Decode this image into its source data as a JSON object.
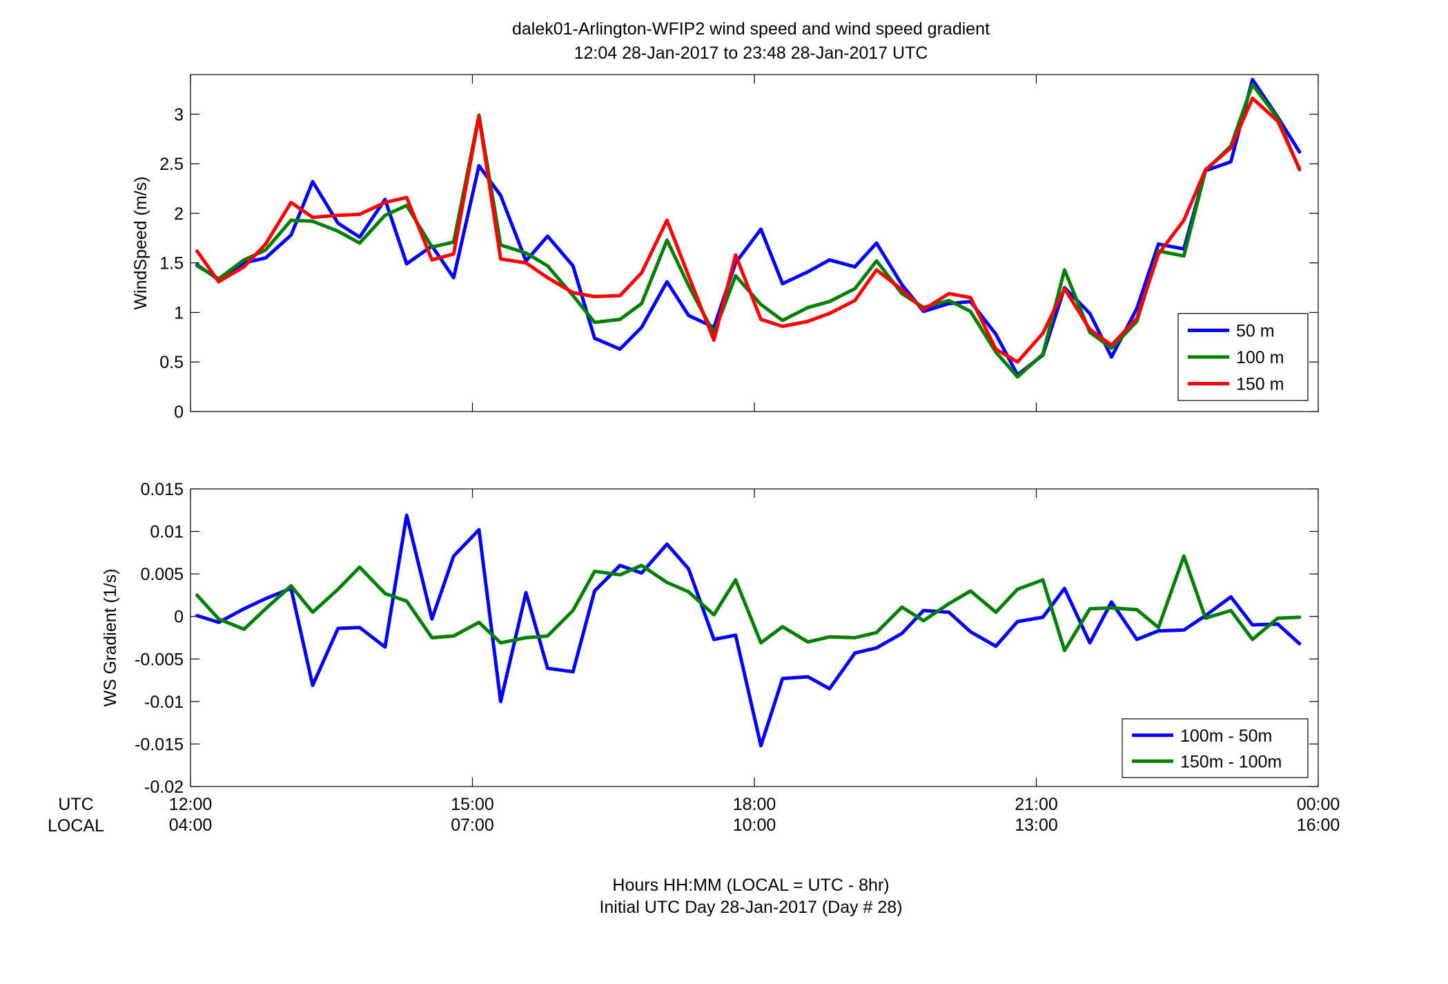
{
  "figure": {
    "title_line1": "dalek01-Arlington-WFIP2  wind speed and wind speed gradient",
    "title_line2": "12:04 28-Jan-2017 to 23:48 28-Jan-2017  UTC",
    "x_row_label_utc": "UTC",
    "x_row_label_local": "LOCAL",
    "footer_line1": "Hours HH:MM  (LOCAL = UTC - 8hr)",
    "footer_line2": "Initial UTC Day 28-Jan-2017 (Day # 28)"
  },
  "chart_data": [
    {
      "type": "line",
      "title": "dalek01-Arlington-WFIP2  wind speed and wind speed gradient",
      "xlabel": "Hours HH:MM  (LOCAL = UTC - 8hr)",
      "ylabel": "WindSpeed (m/s)",
      "xlim": [
        12,
        24
      ],
      "ylim": [
        0,
        3.4
      ],
      "x_ticks": [
        12,
        15,
        18,
        21,
        24
      ],
      "x_ticklabels_utc": [
        "12:00",
        "15:00",
        "18:00",
        "21:00",
        "00:00"
      ],
      "x_ticklabels_local": [
        "04:00",
        "07:00",
        "10:00",
        "13:00",
        "16:00"
      ],
      "y_ticks": [
        0,
        0.5,
        1,
        1.5,
        2,
        2.5,
        3
      ],
      "y_ticklabels": [
        "0",
        "0.5",
        "1",
        "1.5",
        "2",
        "2.5",
        "3"
      ],
      "grid": false,
      "legend_position": "bottom-right",
      "x": [
        12.07,
        12.3,
        12.57,
        12.8,
        13.07,
        13.3,
        13.57,
        13.8,
        14.07,
        14.3,
        14.57,
        14.8,
        15.07,
        15.3,
        15.57,
        15.8,
        16.07,
        16.3,
        16.57,
        16.8,
        17.07,
        17.3,
        17.57,
        17.8,
        18.07,
        18.3,
        18.57,
        18.8,
        19.07,
        19.3,
        19.57,
        19.8,
        20.07,
        20.3,
        20.57,
        20.8,
        21.07,
        21.3,
        21.57,
        21.8,
        22.07,
        22.3,
        22.57,
        22.8,
        23.07,
        23.3,
        23.57,
        23.8
      ],
      "series": [
        {
          "name": "50 m",
          "color": "#0000ff",
          "values": [
            1.48,
            1.33,
            1.5,
            1.55,
            1.78,
            2.32,
            1.9,
            1.76,
            2.14,
            1.49,
            1.67,
            1.35,
            2.48,
            2.18,
            1.52,
            1.77,
            1.47,
            0.74,
            0.63,
            0.85,
            1.31,
            0.97,
            0.85,
            1.5,
            1.84,
            1.29,
            1.41,
            1.53,
            1.46,
            1.7,
            1.28,
            1.01,
            1.09,
            1.11,
            0.78,
            0.37,
            0.57,
            1.25,
            0.99,
            0.55,
            1.04,
            1.69,
            1.64,
            2.43,
            2.52,
            3.35,
            2.97,
            2.62
          ]
        },
        {
          "name": "100 m",
          "color": "#008000",
          "values": [
            1.47,
            1.34,
            1.53,
            1.63,
            1.93,
            1.92,
            1.82,
            1.7,
            1.98,
            2.08,
            1.66,
            1.71,
            2.99,
            1.68,
            1.6,
            1.47,
            1.17,
            0.9,
            0.93,
            1.09,
            1.73,
            1.27,
            0.79,
            1.37,
            1.08,
            0.92,
            1.05,
            1.11,
            1.24,
            1.52,
            1.19,
            1.05,
            1.12,
            1.01,
            0.6,
            0.35,
            0.58,
            1.43,
            0.8,
            0.64,
            0.91,
            1.62,
            1.57,
            2.43,
            2.68,
            3.3,
            2.96,
            2.44
          ]
        },
        {
          "name": "150 m",
          "color": "#ff0000",
          "values": [
            1.62,
            1.31,
            1.46,
            1.69,
            2.11,
            1.96,
            1.98,
            1.99,
            2.11,
            2.16,
            1.53,
            1.59,
            2.98,
            1.54,
            1.5,
            1.35,
            1.2,
            1.16,
            1.17,
            1.4,
            1.93,
            1.37,
            0.72,
            1.58,
            0.93,
            0.86,
            0.91,
            0.99,
            1.12,
            1.43,
            1.23,
            1.03,
            1.19,
            1.15,
            0.63,
            0.5,
            0.79,
            1.24,
            0.83,
            0.67,
            0.94,
            1.59,
            1.93,
            2.44,
            2.66,
            3.16,
            2.93,
            2.45
          ]
        }
      ]
    },
    {
      "type": "line",
      "xlabel": "Hours HH:MM  (LOCAL = UTC - 8hr)",
      "ylabel": "WS Gradient (1/s)",
      "xlim": [
        12,
        24
      ],
      "ylim": [
        -0.02,
        0.015
      ],
      "x_ticks": [
        12,
        15,
        18,
        21,
        24
      ],
      "x_ticklabels_utc": [
        "12:00",
        "15:00",
        "18:00",
        "21:00",
        "00:00"
      ],
      "x_ticklabels_local": [
        "04:00",
        "07:00",
        "10:00",
        "13:00",
        "16:00"
      ],
      "y_ticks": [
        -0.02,
        -0.015,
        -0.01,
        -0.005,
        0,
        0.005,
        0.01,
        0.015
      ],
      "y_ticklabels": [
        "-0.02",
        "-0.015",
        "-0.01",
        "-0.005",
        "0",
        "0.005",
        "0.01",
        "0.015"
      ],
      "grid": false,
      "legend_position": "bottom-right",
      "x": [
        12.07,
        12.3,
        12.57,
        12.8,
        13.07,
        13.3,
        13.57,
        13.8,
        14.07,
        14.3,
        14.57,
        14.8,
        15.07,
        15.3,
        15.57,
        15.8,
        16.07,
        16.3,
        16.57,
        16.8,
        17.07,
        17.3,
        17.57,
        17.8,
        18.07,
        18.3,
        18.57,
        18.8,
        19.07,
        19.3,
        19.57,
        19.8,
        20.07,
        20.3,
        20.57,
        20.8,
        21.07,
        21.3,
        21.57,
        21.8,
        22.07,
        22.3,
        22.57,
        22.8,
        23.07,
        23.3,
        23.57,
        23.8
      ],
      "series": [
        {
          "name": "100m - 50m",
          "color": "#0000ff",
          "values": [
            0.0001,
            -0.0007,
            0.0009,
            0.0021,
            0.0033,
            -0.0081,
            -0.0014,
            -0.0013,
            -0.0036,
            0.0119,
            -0.0003,
            0.0071,
            0.0102,
            -0.01,
            0.0028,
            -0.0061,
            -0.0065,
            0.003,
            0.006,
            0.0051,
            0.0085,
            0.0056,
            -0.0027,
            -0.0022,
            -0.0152,
            -0.0073,
            -0.0071,
            -0.0085,
            -0.0043,
            -0.0037,
            -0.002,
            0.0007,
            0.0005,
            -0.0018,
            -0.0035,
            -0.0006,
            -0.0001,
            0.0033,
            -0.0031,
            0.0017,
            -0.0027,
            -0.0017,
            -0.0016,
            0.0001,
            0.0023,
            -0.001,
            -0.0009,
            -0.0032
          ]
        },
        {
          "name": "150m - 100m",
          "color": "#008000",
          "values": [
            0.0025,
            -0.0003,
            -0.0015,
            0.0009,
            0.0036,
            0.0005,
            0.0032,
            0.0058,
            0.0027,
            0.0018,
            -0.0025,
            -0.0023,
            -0.0007,
            -0.0031,
            -0.0025,
            -0.0023,
            0.0007,
            0.0053,
            0.0049,
            0.006,
            0.004,
            0.0029,
            0.0002,
            0.0043,
            -0.0031,
            -0.0012,
            -0.003,
            -0.0024,
            -0.0025,
            -0.0019,
            0.0011,
            -0.0005,
            0.0015,
            0.003,
            0.0005,
            0.0032,
            0.0043,
            -0.004,
            0.0009,
            0.001,
            0.0008,
            -0.0013,
            0.0071,
            -0.0002,
            0.0007,
            -0.0027,
            -0.0002,
            -0.0001
          ]
        }
      ]
    }
  ]
}
